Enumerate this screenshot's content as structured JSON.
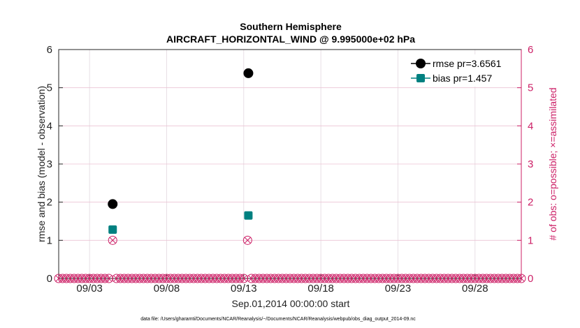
{
  "chart_data": {
    "type": "scatter",
    "title": "Southern Hemisphere",
    "subtitle": "AIRCRAFT_HORIZONTAL_WIND @ 9.995000e+02 hPa",
    "xlabel": "Sep.01,2014 00:00:00 start",
    "ylabel": "rmse and bias (model - observation)",
    "ylabel_right": "# of obs: o=possible; ×=assimilated",
    "xlim": [
      1,
      31
    ],
    "ylim": [
      0,
      6
    ],
    "ylim_right": [
      0,
      6
    ],
    "x_ticks": [
      3,
      8,
      13,
      18,
      23,
      28
    ],
    "x_tick_labels": [
      "09/03",
      "09/08",
      "09/13",
      "09/18",
      "09/23",
      "09/28"
    ],
    "y_ticks": [
      0,
      1,
      2,
      3,
      4,
      5,
      6
    ],
    "y_tick_labels": [
      "0",
      "1",
      "2",
      "3",
      "4",
      "5",
      "6"
    ],
    "y_right_ticks": [
      0,
      1,
      2,
      3,
      4,
      5,
      6
    ],
    "y_right_tick_labels": [
      "0",
      "1",
      "2",
      "3",
      "4",
      "5",
      "6"
    ],
    "grid": true,
    "legend_position": "top-right",
    "series": [
      {
        "name": "rmse",
        "legend_label": "rmse pr=3.6561",
        "color": "#000000",
        "marker": "circle",
        "x": [
          4.5,
          13.3
        ],
        "y": [
          1.95,
          5.38
        ]
      },
      {
        "name": "bias",
        "legend_label": "bias pr=1.457",
        "color": "#008080",
        "marker": "square",
        "x": [
          4.5,
          13.3
        ],
        "y": [
          1.28,
          1.65
        ]
      },
      {
        "name": "obs_possible",
        "color": "#cc1f66",
        "marker": "circle-open",
        "axis": "right",
        "x": [
          1.0,
          1.25,
          1.5,
          1.75,
          2.0,
          2.25,
          2.5,
          2.75,
          3.0,
          3.25,
          3.5,
          3.75,
          4.0,
          4.25,
          4.5,
          4.75,
          5.0,
          5.25,
          5.5,
          5.75,
          6.0,
          6.25,
          6.5,
          6.75,
          7.0,
          7.25,
          7.5,
          7.75,
          8.0,
          8.25,
          8.5,
          8.75,
          9.0,
          9.25,
          9.5,
          9.75,
          10.0,
          10.25,
          10.5,
          10.75,
          11.0,
          11.25,
          11.5,
          11.75,
          12.0,
          12.25,
          12.5,
          12.75,
          13.0,
          13.25,
          13.5,
          13.75,
          14.0,
          14.25,
          14.5,
          14.75,
          15.0,
          15.25,
          15.5,
          15.75,
          16.0,
          16.25,
          16.5,
          16.75,
          17.0,
          17.25,
          17.5,
          17.75,
          18.0,
          18.25,
          18.5,
          18.75,
          19.0,
          19.25,
          19.5,
          19.75,
          20.0,
          20.25,
          20.5,
          20.75,
          21.0,
          21.25,
          21.5,
          21.75,
          22.0,
          22.25,
          22.5,
          22.75,
          23.0,
          23.25,
          23.5,
          23.75,
          24.0,
          24.25,
          24.5,
          24.75,
          25.0,
          25.25,
          25.5,
          25.75,
          26.0,
          26.25,
          26.5,
          26.75,
          27.0,
          27.25,
          27.5,
          27.75,
          28.0,
          28.25,
          28.5,
          28.75,
          29.0,
          29.25,
          29.5,
          29.75,
          30.0,
          30.25,
          30.5,
          30.75,
          31.0
        ],
        "y": [
          0,
          0,
          0,
          0,
          0,
          0,
          0,
          0,
          0,
          0,
          0,
          0,
          0,
          0,
          1,
          0,
          0,
          0,
          0,
          0,
          0,
          0,
          0,
          0,
          0,
          0,
          0,
          0,
          0,
          0,
          0,
          0,
          0,
          0,
          0,
          0,
          0,
          0,
          0,
          0,
          0,
          0,
          0,
          0,
          0,
          0,
          0,
          0,
          0,
          1,
          0,
          0,
          0,
          0,
          0,
          0,
          0,
          0,
          0,
          0,
          0,
          0,
          0,
          0,
          0,
          0,
          0,
          0,
          0,
          0,
          0,
          0,
          0,
          0,
          0,
          0,
          0,
          0,
          0,
          0,
          0,
          0,
          0,
          0,
          0,
          0,
          0,
          0,
          0,
          0,
          0,
          0,
          0,
          0,
          0,
          0,
          0,
          0,
          0,
          0,
          0,
          0,
          0,
          0,
          0,
          0,
          0,
          0,
          0,
          0,
          0,
          0,
          0,
          0,
          0,
          0,
          0,
          0,
          0,
          0,
          0
        ]
      },
      {
        "name": "obs_assimilated",
        "color": "#cc1f66",
        "marker": "cross",
        "axis": "right",
        "x": [
          1.0,
          1.25,
          1.5,
          1.75,
          2.0,
          2.25,
          2.5,
          2.75,
          3.0,
          3.25,
          3.5,
          3.75,
          4.0,
          4.25,
          4.5,
          4.75,
          5.0,
          5.25,
          5.5,
          5.75,
          6.0,
          6.25,
          6.5,
          6.75,
          7.0,
          7.25,
          7.5,
          7.75,
          8.0,
          8.25,
          8.5,
          8.75,
          9.0,
          9.25,
          9.5,
          9.75,
          10.0,
          10.25,
          10.5,
          10.75,
          11.0,
          11.25,
          11.5,
          11.75,
          12.0,
          12.25,
          12.5,
          12.75,
          13.0,
          13.25,
          13.5,
          13.75,
          14.0,
          14.25,
          14.5,
          14.75,
          15.0,
          15.25,
          15.5,
          15.75,
          16.0,
          16.25,
          16.5,
          16.75,
          17.0,
          17.25,
          17.5,
          17.75,
          18.0,
          18.25,
          18.5,
          18.75,
          19.0,
          19.25,
          19.5,
          19.75,
          20.0,
          20.25,
          20.5,
          20.75,
          21.0,
          21.25,
          21.5,
          21.75,
          22.0,
          22.25,
          22.5,
          22.75,
          23.0,
          23.25,
          23.5,
          23.75,
          24.0,
          24.25,
          24.5,
          24.75,
          25.0,
          25.25,
          25.5,
          25.75,
          26.0,
          26.25,
          26.5,
          26.75,
          27.0,
          27.25,
          27.5,
          27.75,
          28.0,
          28.25,
          28.5,
          28.75,
          29.0,
          29.25,
          29.5,
          29.75,
          30.0,
          30.25,
          30.5,
          30.75,
          31.0
        ],
        "y": [
          0,
          0,
          0,
          0,
          0,
          0,
          0,
          0,
          0,
          0,
          0,
          0,
          0,
          0,
          1,
          0,
          0,
          0,
          0,
          0,
          0,
          0,
          0,
          0,
          0,
          0,
          0,
          0,
          0,
          0,
          0,
          0,
          0,
          0,
          0,
          0,
          0,
          0,
          0,
          0,
          0,
          0,
          0,
          0,
          0,
          0,
          0,
          0,
          0,
          1,
          0,
          0,
          0,
          0,
          0,
          0,
          0,
          0,
          0,
          0,
          0,
          0,
          0,
          0,
          0,
          0,
          0,
          0,
          0,
          0,
          0,
          0,
          0,
          0,
          0,
          0,
          0,
          0,
          0,
          0,
          0,
          0,
          0,
          0,
          0,
          0,
          0,
          0,
          0,
          0,
          0,
          0,
          0,
          0,
          0,
          0,
          0,
          0,
          0,
          0,
          0,
          0,
          0,
          0,
          0,
          0,
          0,
          0,
          0,
          0,
          0,
          0,
          0,
          0,
          0,
          0,
          0,
          0,
          0,
          0,
          0
        ]
      }
    ],
    "footnote": "data file: /Users/gharamti/Documents/NCAR/Reanalysis/~/Documents/NCAR/Reanalysis/webpub/obs_diag_output_2014-09.nc"
  }
}
